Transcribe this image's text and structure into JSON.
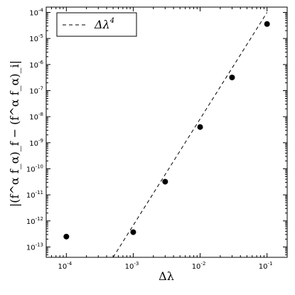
{
  "chart_data": {
    "type": "scatter",
    "title": "",
    "xlabel": "Δλ",
    "ylabel": "|(f^α f_α)_f − (f^α f_α)_i|",
    "xscale": "log",
    "yscale": "log",
    "xlim": [
      5e-05,
      0.2
    ],
    "ylim": [
      4e-14,
      0.00016
    ],
    "grid": false,
    "legend_position": "top-left",
    "x_ticks": [
      {
        "base": "10",
        "exp": "-4",
        "value": 0.0001
      },
      {
        "base": "10",
        "exp": "-3",
        "value": 0.001
      },
      {
        "base": "10",
        "exp": "-2",
        "value": 0.01
      },
      {
        "base": "10",
        "exp": "-1",
        "value": 0.1
      }
    ],
    "y_ticks": [
      {
        "base": "10",
        "exp": "-13",
        "value": 1e-13
      },
      {
        "base": "10",
        "exp": "-12",
        "value": 1e-12
      },
      {
        "base": "10",
        "exp": "-11",
        "value": 1e-11
      },
      {
        "base": "10",
        "exp": "-10",
        "value": 1e-10
      },
      {
        "base": "10",
        "exp": "-9",
        "value": 1e-09
      },
      {
        "base": "10",
        "exp": "-8",
        "value": 1e-08
      },
      {
        "base": "10",
        "exp": "-7",
        "value": 1e-07
      },
      {
        "base": "10",
        "exp": "-6",
        "value": 1e-06
      },
      {
        "base": "10",
        "exp": "-5",
        "value": 1e-05
      },
      {
        "base": "10",
        "exp": "-4",
        "value": 0.0001
      }
    ],
    "series": [
      {
        "kind": "scatter",
        "marker": "filled-circle",
        "color": "#000000",
        "points": [
          {
            "x": 0.0001,
            "y": 2.5e-13
          },
          {
            "x": 0.001,
            "y": 3.7e-13
          },
          {
            "x": 0.003,
            "y": 3.2e-11
          },
          {
            "x": 0.01,
            "y": 4e-09
          },
          {
            "x": 0.03,
            "y": 3.2e-07
          },
          {
            "x": 0.1,
            "y": 3.6e-05
          }
        ]
      },
      {
        "kind": "line",
        "name": "Δλ^4",
        "style": "dashed",
        "color": "#000000",
        "points": [
          {
            "x": 0.0005,
            "y": 4e-14
          },
          {
            "x": 0.1,
            "y": 0.0001
          }
        ]
      }
    ],
    "legend": {
      "label_base": "Δλ",
      "label_exp": "4"
    }
  }
}
